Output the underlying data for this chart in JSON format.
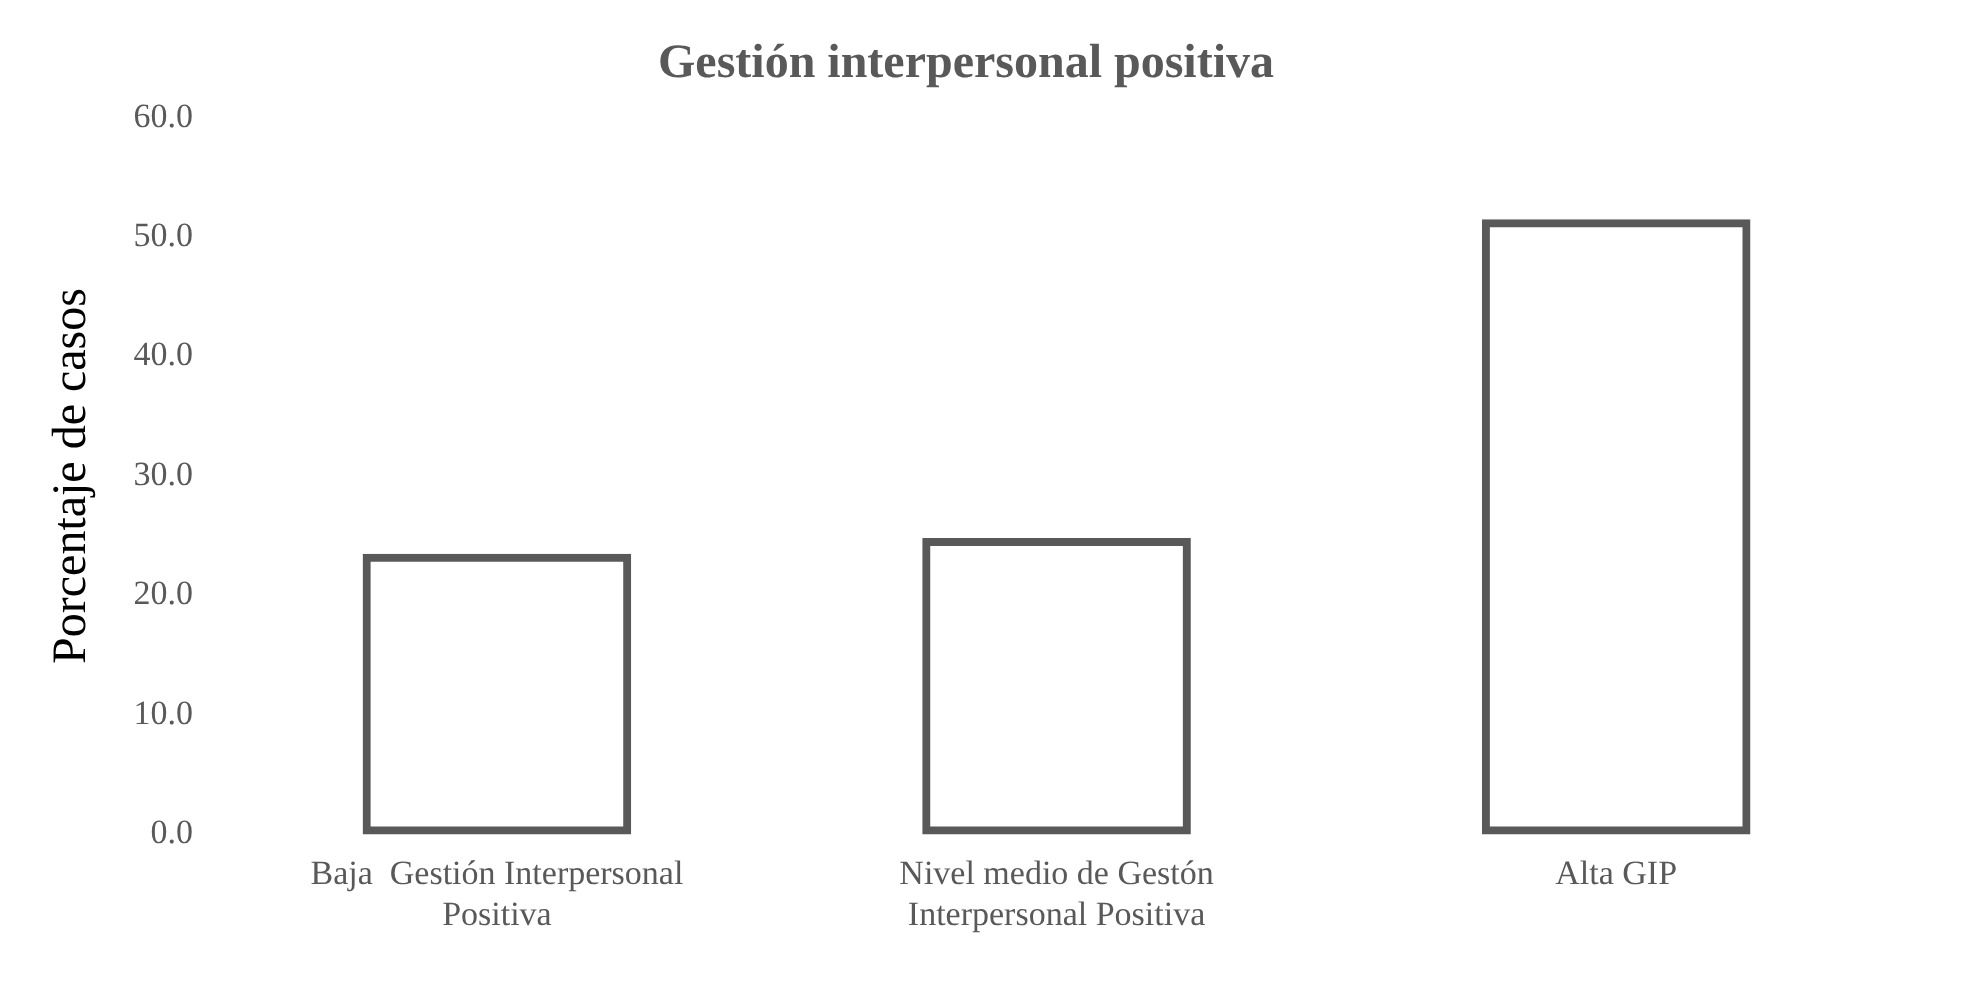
{
  "chart_data": {
    "type": "bar",
    "title": "Gestión interpersonal positiva",
    "ylabel": "Porcentaje de casos",
    "categories": [
      "Baja  Gestión Interpersonal Positiva",
      "Nivel medio de Gestón Interpersonal Positiva",
      "Alta GIP"
    ],
    "values": [
      23.5,
      24.8,
      51.5
    ],
    "color": "#595959",
    "ylim": [
      0,
      60
    ],
    "yticks": [
      {
        "value": 0,
        "label": "0.0"
      },
      {
        "value": 10,
        "label": "10.0"
      },
      {
        "value": 20,
        "label": "20.0"
      },
      {
        "value": 30,
        "label": "30.0"
      },
      {
        "value": 40,
        "label": "40.0"
      },
      {
        "value": 50,
        "label": "50.0"
      },
      {
        "value": 60,
        "label": "60.0"
      }
    ],
    "grid": false,
    "legend": false
  }
}
